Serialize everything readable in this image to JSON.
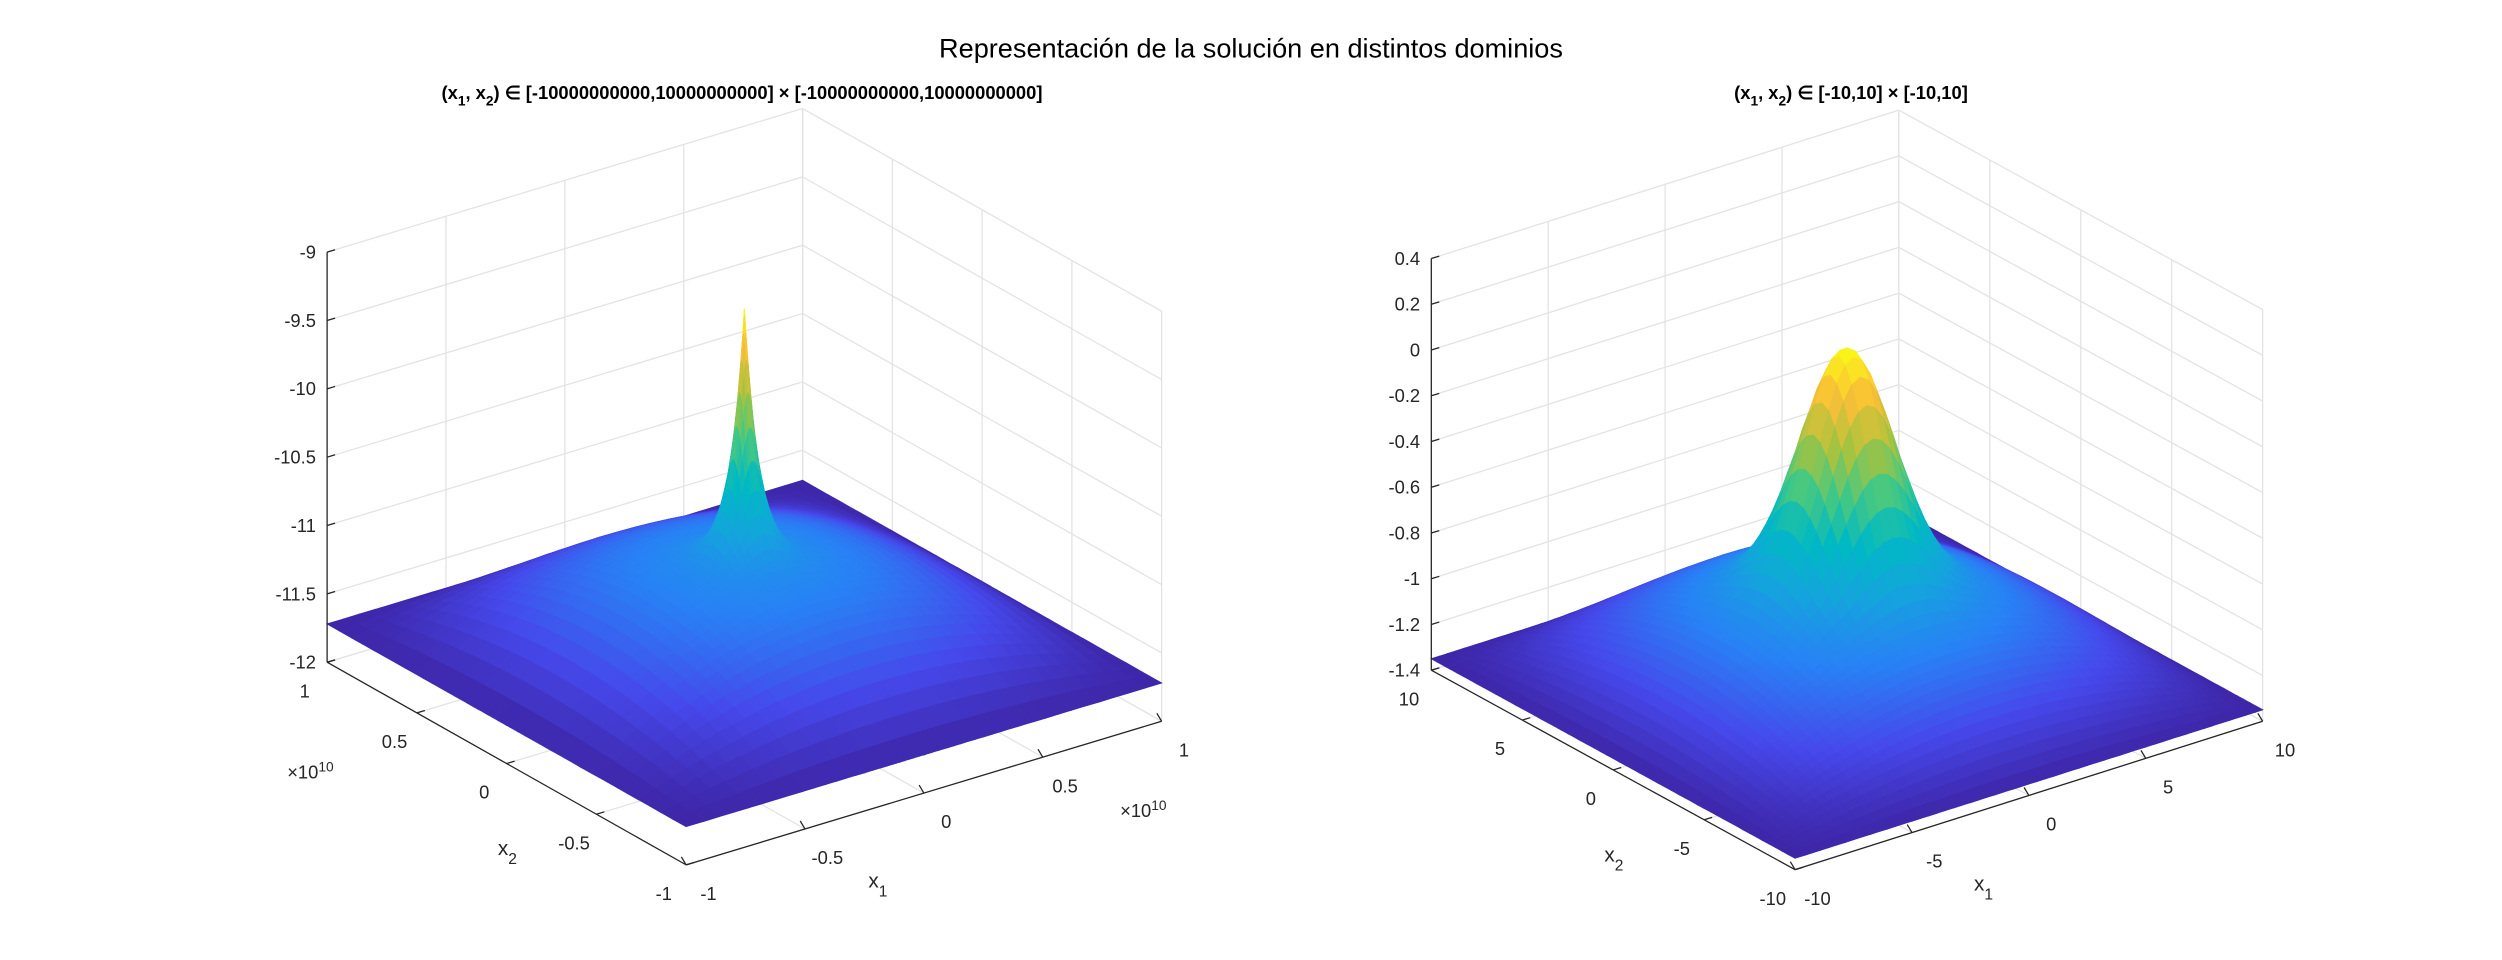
{
  "figure_title": "Representación de la solución en distintos dominios",
  "chart_data": [
    {
      "type": "surface",
      "title_parts": {
        "open": "(x",
        "sub1": "1",
        "mid": ", x",
        "sub2": "2",
        "rest": ") ∈ [-10000000000,10000000000] × [-10000000000,10000000000]"
      },
      "xlabel": {
        "base": "x",
        "sub": "1"
      },
      "ylabel": {
        "base": "x",
        "sub": "2"
      },
      "exponent": {
        "base": "×10",
        "sup": "10"
      },
      "xlim": [
        -1,
        1
      ],
      "ylim": [
        -1,
        1
      ],
      "zlim": [
        -12,
        -9
      ],
      "xticks": [
        "-1",
        "-0.5",
        "0",
        "0.5",
        "1"
      ],
      "yticks": [
        "-1",
        "-0.5",
        "0",
        "0.5",
        "1"
      ],
      "zticks": [
        "-12",
        "-11.5",
        "-11",
        "-10.5",
        "-10",
        "-9.5",
        "-9"
      ],
      "corner_z": -11.72,
      "center_base_z": -11.0,
      "peak_z": -9.2,
      "grid": true,
      "colormap": "parula"
    },
    {
      "type": "surface",
      "title_parts": {
        "open": "(x",
        "sub1": "1",
        "mid": ", x",
        "sub2": "2",
        "rest": ") ∈ [-10,10] × [-10,10]"
      },
      "xlabel": {
        "base": "x",
        "sub": "1"
      },
      "ylabel": {
        "base": "x",
        "sub": "2"
      },
      "xlim": [
        -10,
        10
      ],
      "ylim": [
        -10,
        10
      ],
      "zlim": [
        -1.4,
        0.4
      ],
      "xticks": [
        "-10",
        "-5",
        "0",
        "5",
        "10"
      ],
      "yticks": [
        "-10",
        "-5",
        "0",
        "5",
        "10"
      ],
      "zticks": [
        "-1.4",
        "-1.2",
        "-1",
        "-0.8",
        "-0.6",
        "-0.4",
        "-0.2",
        "0",
        "0.2",
        "0.4"
      ],
      "corner_z": -1.35,
      "center_base_z": -0.85,
      "peak_z": 0.12,
      "grid": true,
      "colormap": "parula"
    }
  ]
}
